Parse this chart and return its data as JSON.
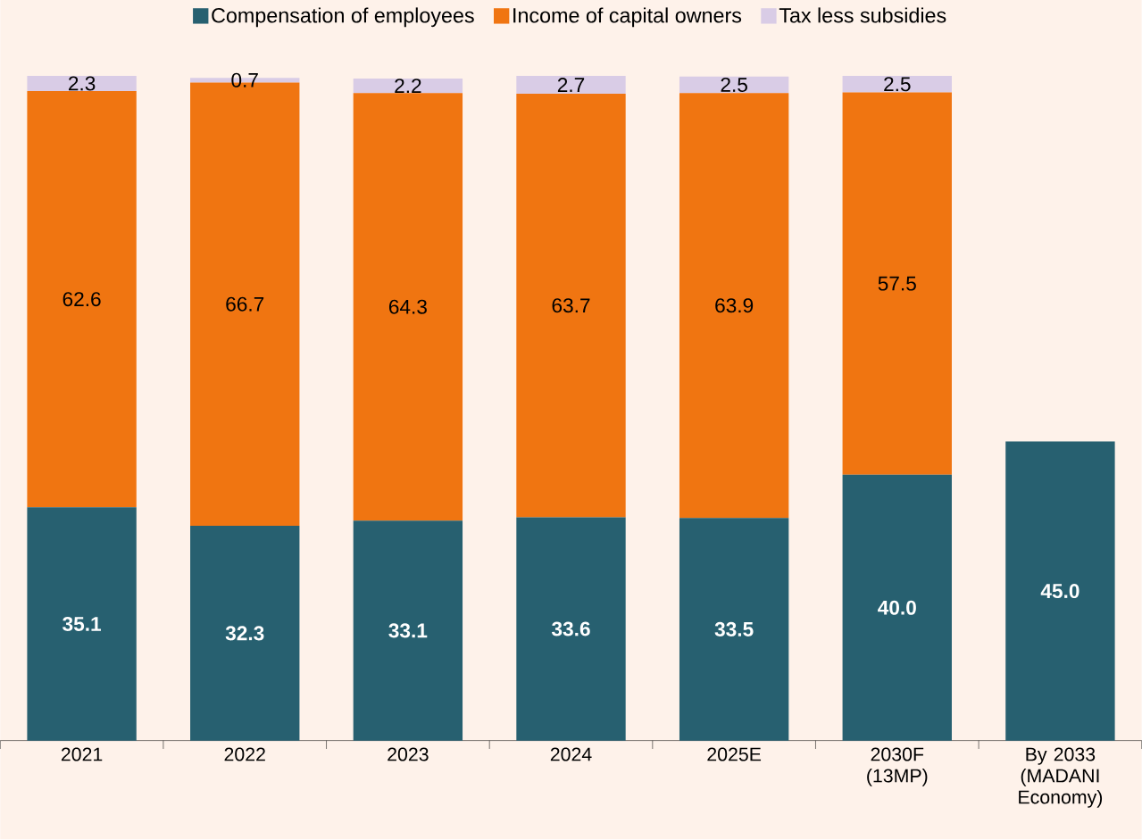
{
  "chart_data": {
    "type": "bar",
    "stacked": true,
    "legend": "top",
    "categories": [
      "2021",
      "2022",
      "2023",
      "2024",
      "2025E",
      "2030F (13MP)",
      "By 2033 (MADANI Economy)"
    ],
    "series": [
      {
        "name": "Compensation of employees",
        "color": "#276070",
        "values": [
          35.1,
          32.3,
          33.1,
          33.6,
          33.5,
          40.0,
          45.0
        ],
        "value_labels": [
          "35.1",
          "32.3",
          "33.1",
          "33.6",
          "33.5",
          "40.0",
          "45.0"
        ]
      },
      {
        "name": "Income of capital owners",
        "color": "#f07511",
        "values": [
          62.6,
          66.7,
          64.3,
          63.7,
          63.9,
          57.5,
          null
        ],
        "value_labels": [
          "62.6",
          "66.7",
          "64.3",
          "63.7",
          "63.9",
          "57.5",
          null
        ]
      },
      {
        "name": "Tax less subsidies",
        "color": "#d9cce6",
        "values": [
          2.3,
          0.7,
          2.2,
          2.7,
          2.5,
          2.5,
          null
        ],
        "value_labels": [
          "2.3",
          "0.7",
          "2.2",
          "2.7",
          "2.5",
          "2.5",
          null
        ]
      }
    ],
    "ylim": [
      0,
      100
    ]
  }
}
